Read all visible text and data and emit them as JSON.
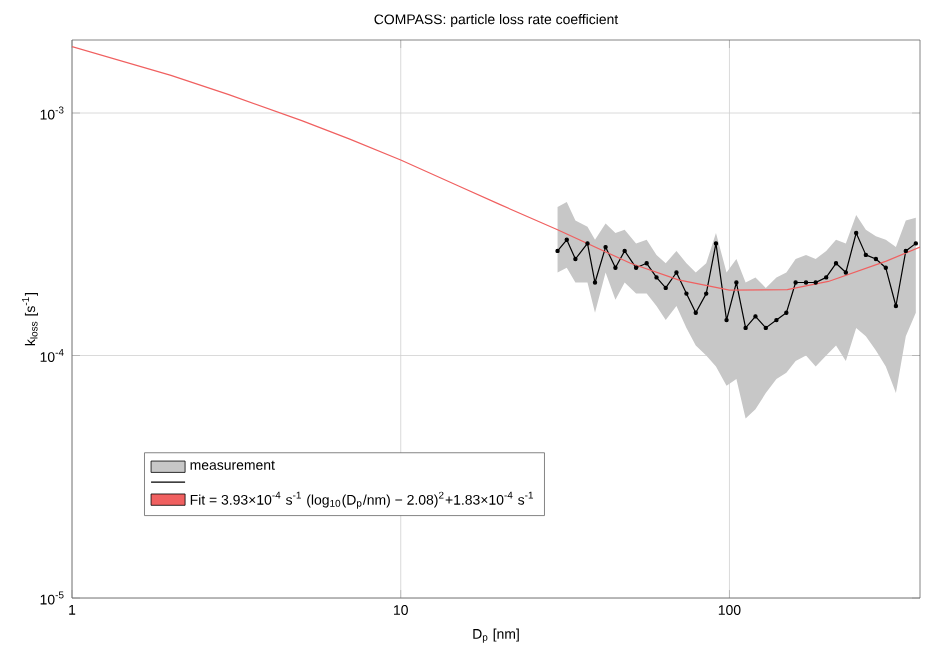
{
  "chart_data": {
    "type": "line",
    "title": "COMPASS: particle loss rate coefficient",
    "xlabel": "D$_{p}$ [nm]",
    "ylabel": "k$_{loss}$ [s$^{-1}$]",
    "log": "xy",
    "grid": true,
    "legend": "bottom left",
    "xlim": [
      1,
      380
    ],
    "ylim": [
      1e-05,
      0.002
    ],
    "xticks": [
      1,
      10,
      100
    ],
    "yticks": [
      {
        "value": 1e-05,
        "label": "10$^{-5}$"
      },
      {
        "value": 0.0001,
        "label": "10$^{-4}$"
      },
      {
        "value": 0.001,
        "label": "10$^{-3}$"
      }
    ],
    "series": [
      {
        "name": "measurement",
        "color": "#000000",
        "marker": "circle",
        "x": [
          30,
          32,
          34,
          37,
          39,
          42,
          45,
          48,
          52,
          56,
          60,
          64,
          69,
          74,
          79,
          85,
          91,
          98,
          105,
          112,
          120,
          129,
          139,
          149,
          159,
          171,
          183,
          197,
          211,
          226,
          243,
          260,
          279,
          299,
          321,
          344,
          369
        ],
        "values": [
          0.00027,
          0.0003,
          0.00025,
          0.00029,
          0.0002,
          0.00028,
          0.00023,
          0.00027,
          0.00023,
          0.00024,
          0.00021,
          0.00019,
          0.00022,
          0.00018,
          0.00015,
          0.00018,
          0.00029,
          0.00014,
          0.0002,
          0.00013,
          0.000145,
          0.00013,
          0.00014,
          0.00015,
          0.0002,
          0.0002,
          0.0002,
          0.00021,
          0.00024,
          0.00022,
          0.00032,
          0.00026,
          0.00025,
          0.00023,
          0.00016,
          0.00027,
          0.00029
        ],
        "upper": [
          0.00041,
          0.00043,
          0.00036,
          0.00034,
          0.0003,
          0.00035,
          0.00032,
          0.00033,
          0.00029,
          0.0003,
          0.00026,
          0.00024,
          0.00027,
          0.00024,
          0.00022,
          0.00024,
          0.00032,
          0.00022,
          0.00025,
          0.0002,
          0.00021,
          0.00019,
          0.00021,
          0.00022,
          0.00025,
          0.00026,
          0.00025,
          0.00027,
          0.0003,
          0.00029,
          0.00038,
          0.00033,
          0.00031,
          0.0003,
          0.00028,
          0.00036,
          0.00037
        ],
        "lower": [
          0.00022,
          0.00023,
          0.0002,
          0.0002,
          0.00015,
          0.00022,
          0.00017,
          0.0002,
          0.00018,
          0.00018,
          0.00016,
          0.00014,
          0.00016,
          0.00013,
          0.00011,
          0.0001,
          9e-05,
          7.5e-05,
          8e-05,
          5.5e-05,
          6e-05,
          7e-05,
          8e-05,
          8.5e-05,
          9.5e-05,
          0.0001,
          9e-05,
          0.0001,
          0.00011,
          9.5e-05,
          0.00013,
          0.00012,
          0.000105,
          9e-05,
          7e-05,
          0.00012,
          0.00015
        ]
      },
      {
        "name": "Fit = 3.93×10$^{-4}$ s$^{-1}$ (log$_{10}$(D$_{p}$/nm) − 2.08)$^{2}$+1.83×10$^{-4}$ s$^{-1}$",
        "color": "#f06060",
        "marker": "none",
        "x": [
          1,
          2,
          3,
          5,
          7,
          10,
          15,
          20,
          30,
          50,
          70,
          100,
          150,
          200,
          300,
          380
        ],
        "values": [
          0.00188,
          0.00143,
          0.00119,
          0.00093,
          0.00078,
          0.00064,
          0.0005,
          0.00042,
          0.00033,
          0.00024,
          0.000205,
          0.000186,
          0.000187,
          0.000202,
          0.000245,
          0.00028
        ]
      }
    ]
  }
}
